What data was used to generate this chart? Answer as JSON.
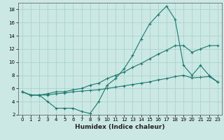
{
  "xlabel": "Humidex (Indice chaleur)",
  "background_color": "#cce8e4",
  "grid_color": "#aad4ce",
  "line_color": "#1a7a6e",
  "xlim": [
    -0.5,
    23.5
  ],
  "ylim": [
    2,
    19
  ],
  "yticks": [
    2,
    4,
    6,
    8,
    10,
    12,
    14,
    16,
    18
  ],
  "xticks": [
    0,
    1,
    2,
    3,
    4,
    5,
    6,
    7,
    8,
    9,
    10,
    11,
    12,
    13,
    14,
    15,
    16,
    17,
    18,
    19,
    20,
    21,
    22,
    23
  ],
  "line1_x": [
    0,
    1,
    2,
    3,
    4,
    5,
    6,
    7,
    8,
    9,
    10,
    11,
    12,
    13,
    14,
    15,
    16,
    17,
    18,
    19,
    20,
    21,
    22,
    23
  ],
  "line1_y": [
    5.5,
    5.0,
    5.0,
    4.0,
    3.0,
    3.0,
    3.0,
    2.5,
    2.2,
    4.0,
    6.5,
    7.5,
    9.0,
    11.0,
    13.5,
    15.8,
    17.2,
    18.5,
    16.5,
    9.5,
    8.0,
    9.5,
    8.0,
    7.0
  ],
  "line2_x": [
    0,
    1,
    2,
    3,
    4,
    5,
    6,
    7,
    8,
    9,
    10,
    11,
    12,
    13,
    14,
    15,
    16,
    17,
    18,
    19,
    20,
    21,
    22,
    23
  ],
  "line2_y": [
    5.5,
    5.0,
    5.0,
    5.2,
    5.5,
    5.5,
    5.8,
    6.0,
    6.5,
    6.8,
    7.5,
    8.0,
    8.5,
    9.2,
    9.8,
    10.5,
    11.2,
    11.8,
    12.5,
    12.5,
    11.5,
    12.0,
    12.5,
    12.5
  ],
  "line3_x": [
    0,
    1,
    2,
    3,
    4,
    5,
    6,
    7,
    8,
    9,
    10,
    11,
    12,
    13,
    14,
    15,
    16,
    17,
    18,
    19,
    20,
    21,
    22,
    23
  ],
  "line3_y": [
    5.5,
    5.0,
    5.0,
    5.0,
    5.2,
    5.3,
    5.5,
    5.6,
    5.7,
    5.8,
    6.0,
    6.2,
    6.4,
    6.6,
    6.8,
    7.0,
    7.3,
    7.5,
    7.8,
    8.0,
    7.6,
    7.7,
    7.8,
    7.0
  ]
}
